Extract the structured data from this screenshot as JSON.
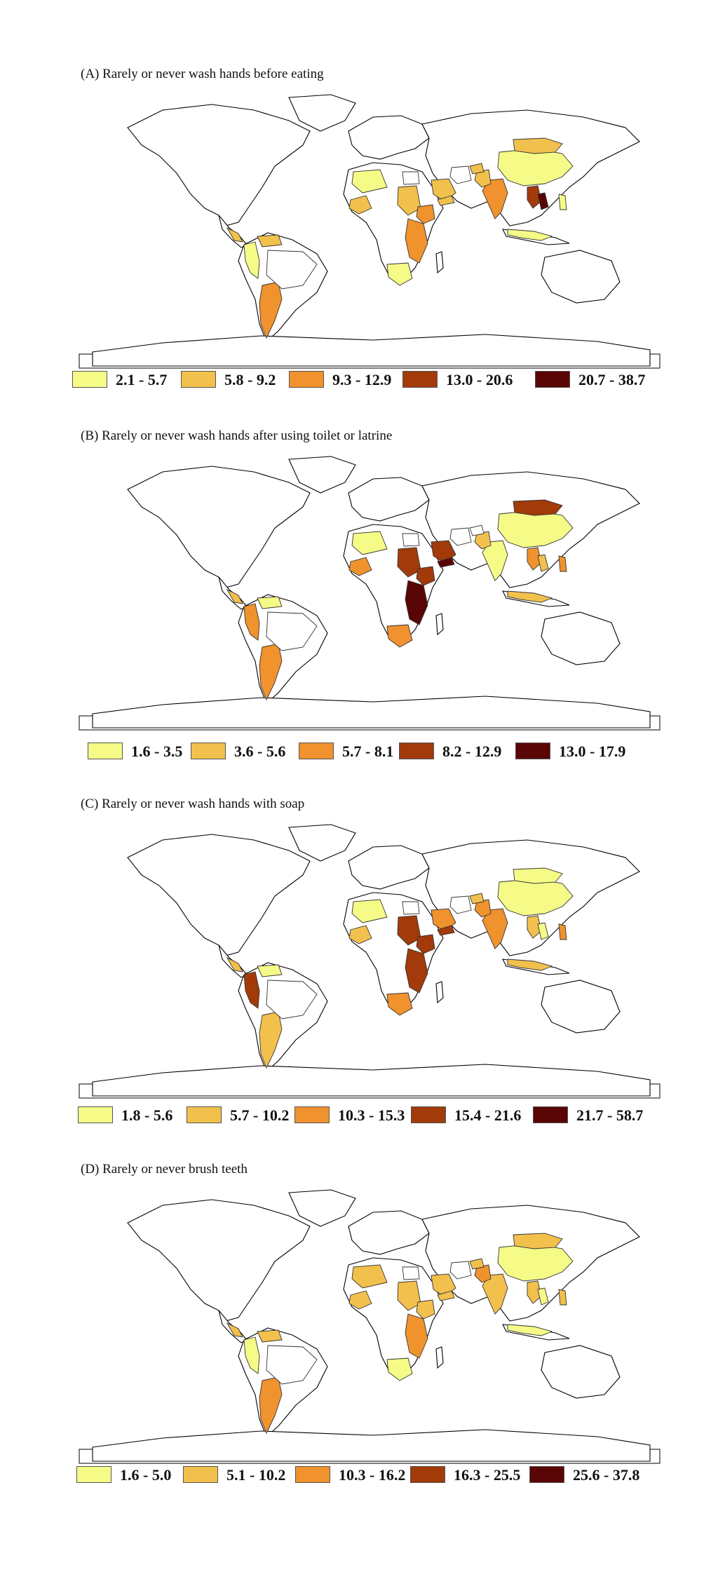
{
  "colors": {
    "c1": "#f5fb86",
    "c2": "#f2c04c",
    "c3": "#f0922e",
    "c4": "#a33a0a",
    "c5": "#5a0505",
    "background": "#ffffff"
  },
  "panels": [
    {
      "title": "(A) Rarely  or never wash hands before eating",
      "legend": [
        {
          "label": "2.1 - 5.7",
          "color": "#f5fb86"
        },
        {
          "label": "5.8 - 9.2",
          "color": "#f2c04c"
        },
        {
          "label": "9.3 - 12.9",
          "color": "#f0922e"
        },
        {
          "label": "13.0 - 20.6",
          "color": "#a33a0a"
        },
        {
          "label": "20.7 - 38.7",
          "color": "#5a0505"
        }
      ],
      "regions": {
        "china": "c1",
        "mongolia": "c2",
        "india": "c3",
        "pakistan": "c2",
        "afghanistan": "c2",
        "iran": "",
        "saudi": "c2",
        "yemen": "c2",
        "egypt": "",
        "sahara": "c1",
        "sudan": "c2",
        "ethiopia": "c3",
        "eastafrica": "c3",
        "southernafrica": "c1",
        "westafrica": "c2",
        "seasia": "c4",
        "seasia2": "c5",
        "indonesia": "c1",
        "philippines": "c1",
        "argentina": "c3",
        "andes": "c1",
        "brazil": "",
        "venezuela": "c2",
        "centralam": "c2"
      }
    },
    {
      "title": "(B) Rarely  or never wash hands after using toilet or latrine",
      "legend": [
        {
          "label": "1.6 - 3.5",
          "color": "#f5fb86"
        },
        {
          "label": "3.6 - 5.6",
          "color": "#f2c04c"
        },
        {
          "label": "5.7 - 8.1",
          "color": "#f0922e"
        },
        {
          "label": "8.2 - 12.9",
          "color": "#a33a0a"
        },
        {
          "label": "13.0 - 17.9",
          "color": "#5a0505"
        }
      ],
      "regions": {
        "china": "c1",
        "mongolia": "c4",
        "india": "c1",
        "pakistan": "c2",
        "afghanistan": "",
        "iran": "",
        "saudi": "c4",
        "yemen": "c5",
        "egypt": "",
        "sahara": "c1",
        "sudan": "c4",
        "ethiopia": "c4",
        "eastafrica": "c5",
        "southernafrica": "c3",
        "westafrica": "c3",
        "seasia": "c3",
        "seasia2": "c2",
        "indonesia": "c2",
        "philippines": "c3",
        "argentina": "c3",
        "andes": "c3",
        "brazil": "",
        "venezuela": "c1",
        "centralam": "c2"
      }
    },
    {
      "title": "(C) Rarely  or never wash hands with soap",
      "legend": [
        {
          "label": "1.8 - 5.6",
          "color": "#f5fb86"
        },
        {
          "label": "5.7 - 10.2",
          "color": "#f2c04c"
        },
        {
          "label": "10.3 - 15.3",
          "color": "#f0922e"
        },
        {
          "label": "15.4 - 21.6",
          "color": "#a33a0a"
        },
        {
          "label": "21.7 - 58.7",
          "color": "#5a0505"
        }
      ],
      "regions": {
        "china": "c1",
        "mongolia": "c1",
        "india": "c3",
        "pakistan": "c3",
        "afghanistan": "c2",
        "iran": "",
        "saudi": "c3",
        "yemen": "c4",
        "egypt": "",
        "sahara": "c1",
        "sudan": "c4",
        "ethiopia": "c4",
        "eastafrica": "c4",
        "southernafrica": "c3",
        "westafrica": "c2",
        "seasia": "c2",
        "seasia2": "c1",
        "indonesia": "c2",
        "philippines": "c3",
        "argentina": "c2",
        "andes": "c4",
        "brazil": "",
        "venezuela": "c1",
        "centralam": "c2"
      }
    },
    {
      "title": "(D) Rarely  or never brush teeth",
      "legend": [
        {
          "label": "1.6 - 5.0",
          "color": "#f5fb86"
        },
        {
          "label": "5.1 - 10.2",
          "color": "#f2c04c"
        },
        {
          "label": "10.3 - 16.2",
          "color": "#f0922e"
        },
        {
          "label": "16.3 - 25.5",
          "color": "#a33a0a"
        },
        {
          "label": "25.6 - 37.8",
          "color": "#5a0505"
        }
      ],
      "regions": {
        "china": "c1",
        "mongolia": "c2",
        "india": "c2",
        "pakistan": "c3",
        "afghanistan": "c2",
        "iran": "",
        "saudi": "c2",
        "yemen": "c2",
        "egypt": "",
        "sahara": "c2",
        "sudan": "c2",
        "ethiopia": "c2",
        "eastafrica": "c3",
        "southernafrica": "c1",
        "westafrica": "c2",
        "seasia": "c2",
        "seasia2": "c1",
        "indonesia": "c1",
        "philippines": "c2",
        "argentina": "c3",
        "andes": "c1",
        "brazil": "",
        "venezuela": "c2",
        "centralam": "c2"
      }
    }
  ]
}
